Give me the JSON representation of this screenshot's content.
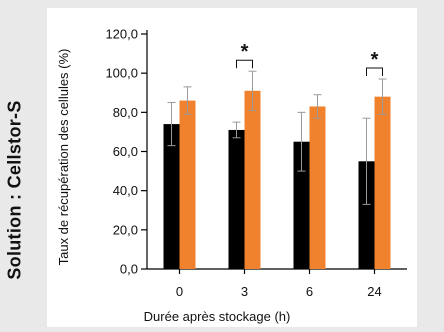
{
  "side_label": "Solution : Cellstor-S",
  "colors": {
    "series_a": "#000000",
    "series_b": "#f0822d",
    "error_bar": "#9a9a9a",
    "axis": "#000000"
  },
  "chart_data": {
    "type": "bar",
    "categories": [
      "0",
      "3",
      "6",
      "24"
    ],
    "series": [
      {
        "values": [
          74,
          71,
          65,
          55
        ],
        "errors": [
          11,
          4,
          15,
          22
        ]
      },
      {
        "values": [
          86,
          91,
          83,
          88
        ],
        "errors": [
          7,
          10,
          6,
          9
        ]
      }
    ],
    "xlabel": "Durée après stockage (h)",
    "ylabel": "Taux de récupération des cellules (%)",
    "ylim": [
      0,
      120
    ],
    "yticks": [
      "0,0",
      "20,0",
      "40,0",
      "60,0",
      "80,0",
      "100,0",
      "120,0"
    ],
    "significance": [
      {
        "category": "3",
        "label": "*"
      },
      {
        "category": "24",
        "label": "*"
      }
    ],
    "grid": false,
    "legend": "none"
  }
}
